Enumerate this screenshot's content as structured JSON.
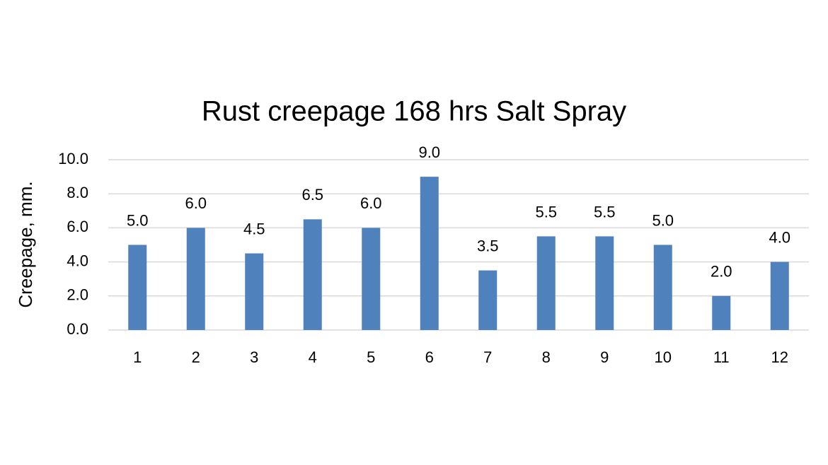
{
  "chart_data": {
    "type": "bar",
    "title": "Rust creepage 168 hrs Salt Spray",
    "y_label": "Creepage, mm.",
    "categories": [
      "1",
      "2",
      "3",
      "4",
      "5",
      "6",
      "7",
      "8",
      "9",
      "10",
      "11",
      "12"
    ],
    "values": [
      5,
      6,
      4.5,
      6.5,
      6,
      9,
      3.5,
      5.5,
      5.5,
      5,
      2,
      4
    ],
    "value_labels": [
      "5.0",
      "6.0",
      "4.5",
      "6.5",
      "6.0",
      "9.0",
      "3.5",
      "5.5",
      "5.5",
      "5.0",
      "2.0",
      "4.0"
    ],
    "color": "#4f81bd",
    "ylim": [
      0,
      10
    ],
    "yticks": [
      {
        "value": 0,
        "label": "0.0"
      },
      {
        "value": 2,
        "label": "2.0"
      },
      {
        "value": 4,
        "label": "4.0"
      },
      {
        "value": 6,
        "label": "6.0"
      },
      {
        "value": 8,
        "label": "8.0"
      },
      {
        "value": 10,
        "label": "10.0"
      }
    ],
    "grid": true
  }
}
